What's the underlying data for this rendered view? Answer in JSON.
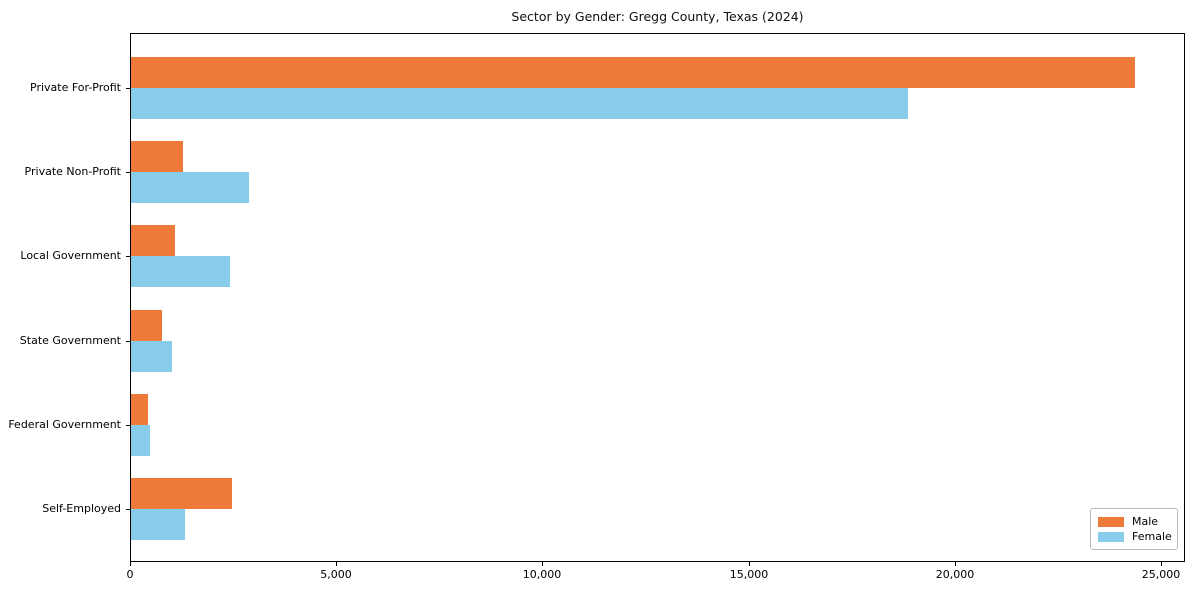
{
  "chart_data": {
    "type": "bar",
    "orientation": "horizontal",
    "title": "Sector by Gender: Gregg County, Texas (2024)",
    "categories": [
      "Private For-Profit",
      "Private Non-Profit",
      "Local Government",
      "State Government",
      "Federal Government",
      "Self-Employed"
    ],
    "series": [
      {
        "name": "Male",
        "color": "#ed7a38",
        "values": [
          24350,
          1260,
          1070,
          750,
          420,
          2450
        ]
      },
      {
        "name": "Female",
        "color": "#87cce8",
        "values": [
          18850,
          2850,
          2400,
          990,
          460,
          1310
        ]
      }
    ],
    "xlabel": "",
    "ylabel": "",
    "xlim": [
      0,
      25000
    ],
    "x_ticks": [
      0,
      5000,
      10000,
      15000,
      20000,
      25000
    ],
    "x_tick_labels": [
      "0",
      "5,000",
      "10,000",
      "15,000",
      "20,000",
      "25,000"
    ],
    "grid": false,
    "legend_position": "lower right"
  }
}
